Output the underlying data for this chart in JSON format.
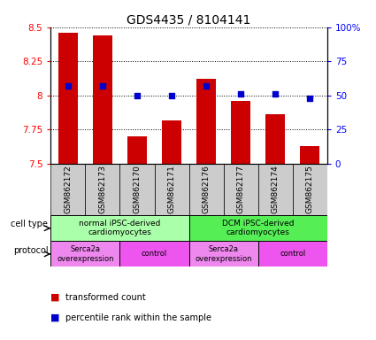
{
  "title": "GDS4435 / 8104141",
  "samples": [
    "GSM862172",
    "GSM862173",
    "GSM862170",
    "GSM862171",
    "GSM862176",
    "GSM862177",
    "GSM862174",
    "GSM862175"
  ],
  "transformed_counts": [
    8.46,
    8.44,
    7.7,
    7.82,
    8.12,
    7.96,
    7.86,
    7.63
  ],
  "percentile_ranks": [
    57,
    57,
    50,
    50,
    57,
    51,
    51,
    48
  ],
  "ylim": [
    7.5,
    8.5
  ],
  "y_ticks": [
    7.5,
    7.75,
    8.0,
    8.25,
    8.5
  ],
  "y_tick_labels": [
    "7.5",
    "7.75",
    "8",
    "8.25",
    "8.5"
  ],
  "right_ylim": [
    0,
    100
  ],
  "right_yticks": [
    0,
    25,
    50,
    75,
    100
  ],
  "right_yticklabels": [
    "0",
    "25",
    "50",
    "75",
    "100%"
  ],
  "bar_color": "#cc0000",
  "dot_color": "#0000cc",
  "cell_type_groups": [
    {
      "label": "normal iPSC-derived\ncardiomyocytes",
      "start": 0,
      "end": 3,
      "color": "#aaffaa"
    },
    {
      "label": "DCM iPSC-derived\ncardiomyocytes",
      "start": 4,
      "end": 7,
      "color": "#55ee55"
    }
  ],
  "protocol_groups": [
    {
      "label": "Serca2a\noverexpression",
      "start": 0,
      "end": 1,
      "color": "#ee88ee"
    },
    {
      "label": "control",
      "start": 2,
      "end": 3,
      "color": "#ee55ee"
    },
    {
      "label": "Serca2a\noverexpression",
      "start": 4,
      "end": 5,
      "color": "#ee88ee"
    },
    {
      "label": "control",
      "start": 6,
      "end": 7,
      "color": "#ee55ee"
    }
  ],
  "cell_type_label": "cell type",
  "protocol_label": "protocol",
  "legend_bar_label": "transformed count",
  "legend_dot_label": "percentile rank within the sample",
  "title_fontsize": 10,
  "tick_fontsize": 7.5,
  "bar_width": 0.55
}
